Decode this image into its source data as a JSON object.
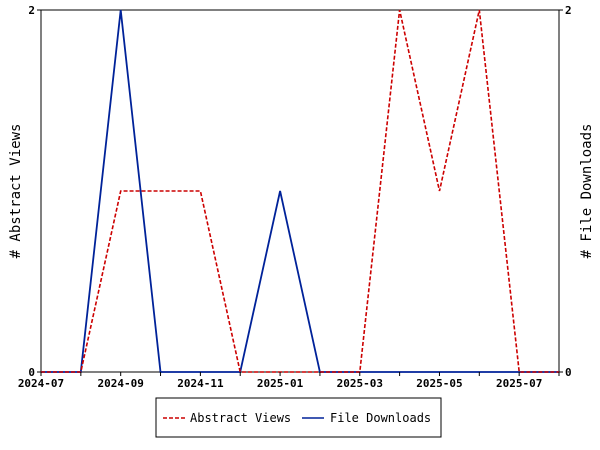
{
  "chart_data": {
    "type": "line",
    "x": [
      "2024-07",
      "2024-08",
      "2024-09",
      "2024-10",
      "2024-11",
      "2024-12",
      "2025-01",
      "2025-02",
      "2025-03",
      "2025-04",
      "2025-05",
      "2025-06",
      "2025-07",
      "2025-08"
    ],
    "x_tick_labels": [
      "2024-07",
      "2024-09",
      "2024-11",
      "2025-01",
      "2025-03",
      "2025-05",
      "2025-07"
    ],
    "y_left": {
      "label": "# Abstract Views",
      "ylim": [
        0,
        2
      ],
      "tick_labels": [
        "0",
        "2"
      ]
    },
    "y_right": {
      "label": "# File Downloads",
      "ylim": [
        0,
        2
      ],
      "tick_labels": [
        "0",
        "2"
      ]
    },
    "series": [
      {
        "name": "Abstract Views",
        "axis": "left",
        "color": "#cc0000",
        "dash": "dashed",
        "values": [
          0,
          0,
          1,
          1,
          1,
          0,
          0,
          0,
          0,
          2,
          1,
          2,
          0,
          0
        ]
      },
      {
        "name": "File Downloads",
        "axis": "right",
        "color": "#002299",
        "dash": "solid",
        "values": [
          0,
          0,
          2,
          0,
          0,
          0,
          1,
          0,
          0,
          0,
          0,
          0,
          0,
          0
        ]
      }
    ],
    "grid": false,
    "legend_position": "bottom"
  }
}
